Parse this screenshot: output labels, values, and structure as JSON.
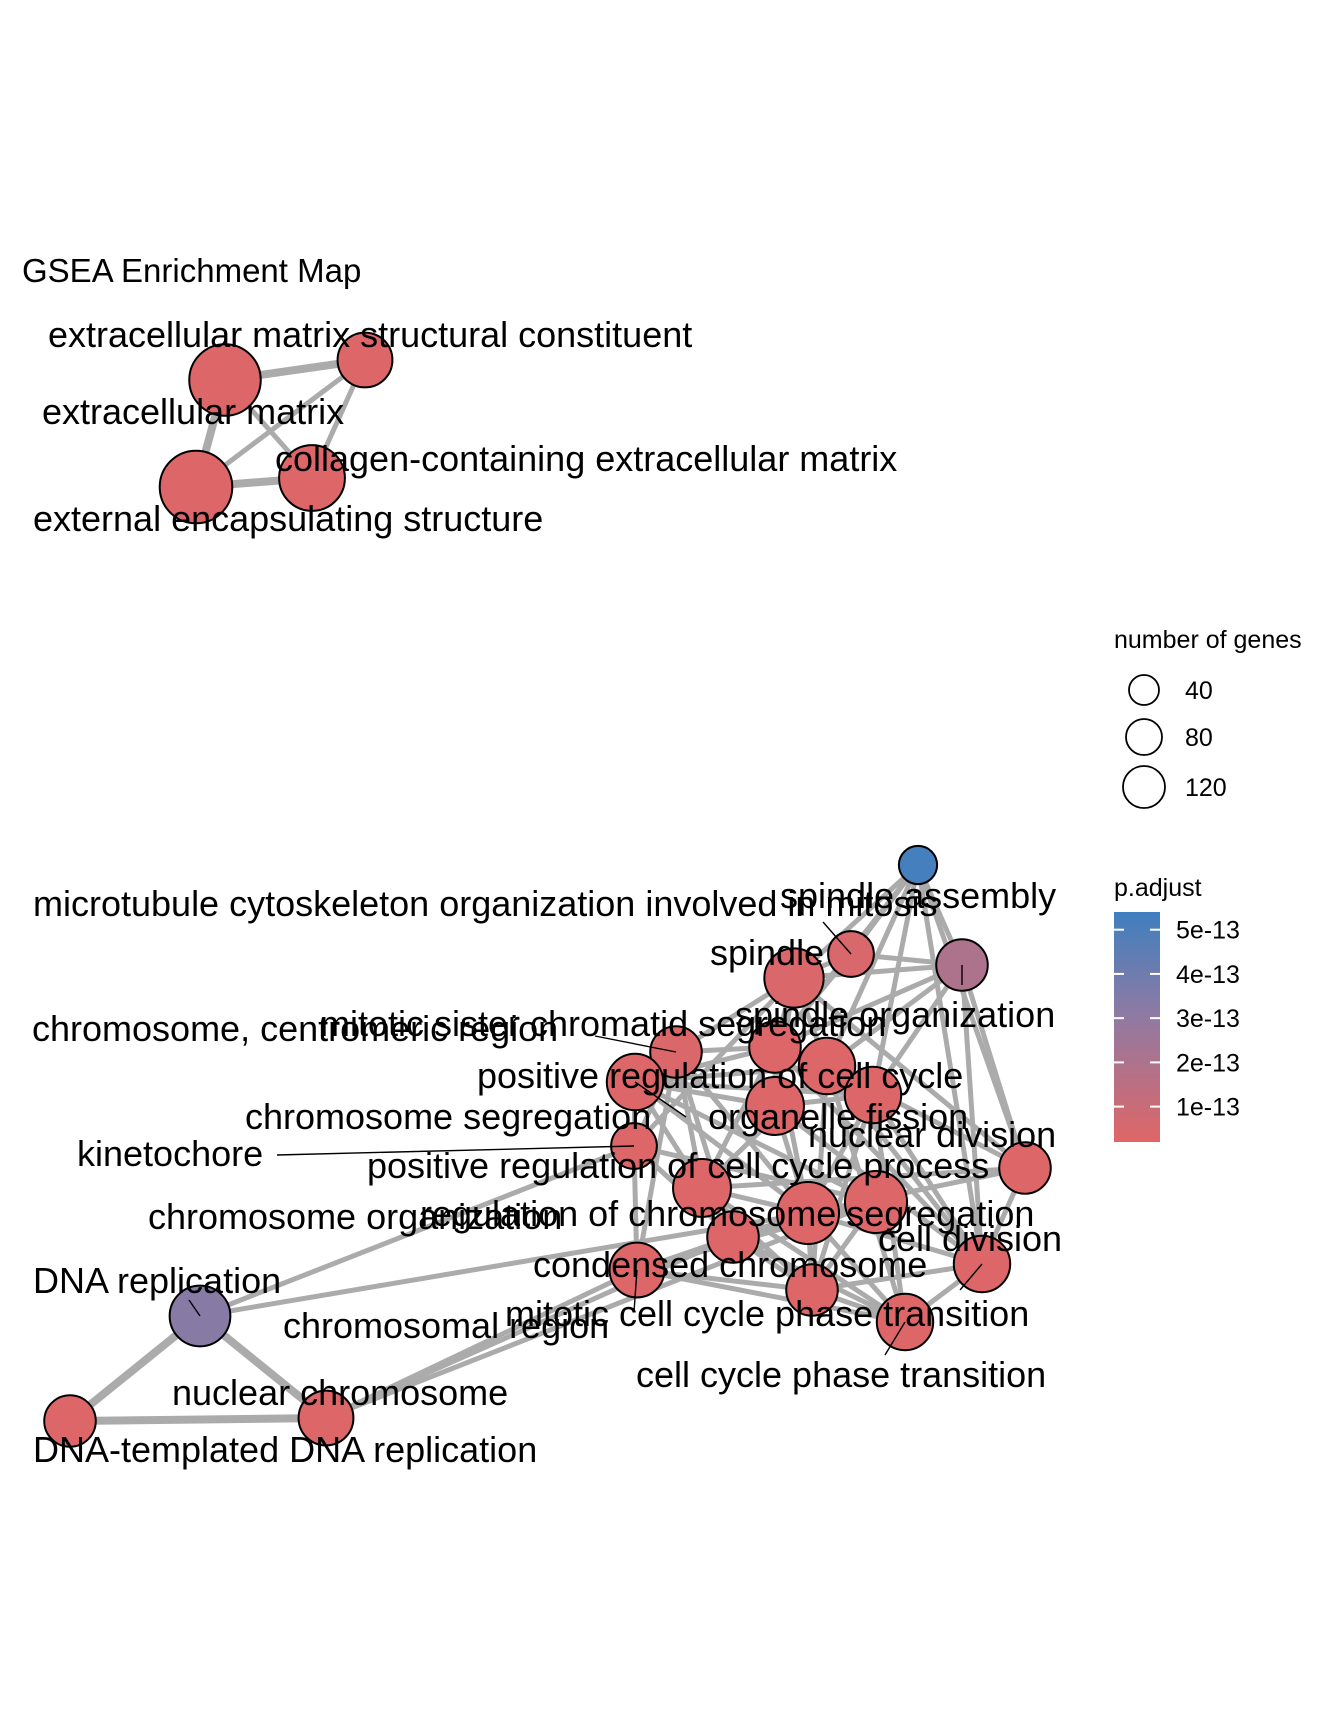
{
  "title": "GSEA Enrichment Map",
  "colors": {
    "low": "#e06666",
    "mid": "#8f7aa3",
    "high": "#3f7fbf",
    "edge": "#ababab"
  },
  "legend": {
    "size_title": "number of genes",
    "size_items": [
      {
        "label": "40",
        "genes": 40
      },
      {
        "label": "80",
        "genes": 80
      },
      {
        "label": "120",
        "genes": 120
      }
    ],
    "color_title": "p.adjust",
    "color_ticks": [
      {
        "label": "5e-13",
        "value": 5e-13
      },
      {
        "label": "4e-13",
        "value": 4e-13
      },
      {
        "label": "3e-13",
        "value": 3e-13
      },
      {
        "label": "2e-13",
        "value": 2e-13
      },
      {
        "label": "1e-13",
        "value": 1e-13
      }
    ],
    "color_range": [
      2e-14,
      5.4e-13
    ]
  },
  "nodes": [
    {
      "id": "ecm_struct",
      "label": "extracellular matrix structural constituent",
      "genes": 55,
      "padj": 3e-14
    },
    {
      "id": "ecm",
      "label": "extracellular matrix",
      "genes": 120,
      "padj": 3e-14
    },
    {
      "id": "collagen",
      "label": "collagen-containing extracellular matrix",
      "genes": 95,
      "padj": 3e-14
    },
    {
      "id": "external",
      "label": "external encapsulating structure",
      "genes": 125,
      "padj": 3e-14
    },
    {
      "id": "mt_org",
      "label": "microtubule cytoskeleton organization involved in mitosis",
      "genes": 15,
      "padj": 5.2e-13
    },
    {
      "id": "spindle_assembly",
      "label": "spindle assembly",
      "genes": 30,
      "padj": 5e-14
    },
    {
      "id": "spindle",
      "label": "spindle",
      "genes": 70,
      "padj": 4e-14
    },
    {
      "id": "spindle_org",
      "label": "spindle organization",
      "genes": 45,
      "padj": 2e-13
    },
    {
      "id": "centromeric",
      "label": "chromosome, centromeric region",
      "genes": 45,
      "padj": 4e-14
    },
    {
      "id": "sister",
      "label": "mitotic sister chromatid segregation",
      "genes": 45,
      "padj": 3e-14
    },
    {
      "id": "pos_reg_cc",
      "label": "positive regulation of cell cycle",
      "genes": 60,
      "padj": 3e-14
    },
    {
      "id": "chrom_seg",
      "label": "chromosome segregation",
      "genes": 60,
      "padj": 3e-14
    },
    {
      "id": "org_fission",
      "label": "organelle fission",
      "genes": 65,
      "padj": 3e-14
    },
    {
      "id": "nuc_div",
      "label": "nuclear division",
      "genes": 60,
      "padj": 3e-14
    },
    {
      "id": "kinetochore",
      "label": "kinetochore",
      "genes": 30,
      "padj": 3e-14
    },
    {
      "id": "pos_reg_ccp",
      "label": "positive regulation of cell cycle process",
      "genes": 65,
      "padj": 3e-14
    },
    {
      "id": "extra1",
      "label": "",
      "genes": 45,
      "padj": 3e-14
    },
    {
      "id": "chrom_org",
      "label": "chromosome organization",
      "genes": 80,
      "padj": 3e-14
    },
    {
      "id": "reg_chrom_seg",
      "label": "regulation of chromosome segregation",
      "genes": 80,
      "padj": 3e-14
    },
    {
      "id": "cell_div",
      "label": "cell division",
      "genes": 60,
      "padj": 3e-14
    },
    {
      "id": "condensed",
      "label": "condensed chromosome",
      "genes": 45,
      "padj": 3e-14
    },
    {
      "id": "mitotic_cc",
      "label": "mitotic cell cycle phase transition",
      "genes": 45,
      "padj": 3e-14
    },
    {
      "id": "chromosomal",
      "label": "chromosomal region",
      "genes": 55,
      "padj": 3e-14
    },
    {
      "id": "cc_phase",
      "label": "cell cycle phase transition",
      "genes": 60,
      "padj": 3e-14
    },
    {
      "id": "dna_rep",
      "label": "DNA replication",
      "genes": 75,
      "padj": 3.3e-13
    },
    {
      "id": "nuc_chrom",
      "label": "nuclear chromosome",
      "genes": 55,
      "padj": 3e-14
    },
    {
      "id": "dna_templ",
      "label": "DNA-templated DNA replication",
      "genes": 45,
      "padj": 3e-14
    }
  ],
  "edges": [
    [
      "ecm",
      "ecm_struct"
    ],
    [
      "ecm",
      "external"
    ],
    [
      "ecm",
      "collagen"
    ],
    [
      "ecm_struct",
      "collagen"
    ],
    [
      "ecm_struct",
      "external"
    ],
    [
      "external",
      "collagen"
    ],
    [
      "dna_rep",
      "dna_templ"
    ],
    [
      "dna_rep",
      "nuc_chrom"
    ],
    [
      "dna_templ",
      "nuc_chrom"
    ],
    [
      "dna_rep",
      "chrom_org"
    ],
    [
      "dna_rep",
      "kinetochore"
    ],
    [
      "nuc_chrom",
      "chromosomal"
    ],
    [
      "nuc_chrom",
      "condensed"
    ],
    [
      "nuc_chrom",
      "chrom_org"
    ],
    [
      "mt_org",
      "spindle"
    ],
    [
      "mt_org",
      "spindle_org"
    ],
    [
      "mt_org",
      "spindle_assembly"
    ],
    [
      "mt_org",
      "sister"
    ],
    [
      "mt_org",
      "nuc_div"
    ],
    [
      "mt_org",
      "extra1"
    ],
    [
      "mt_org",
      "pos_reg_cc"
    ],
    [
      "spindle_assembly",
      "spindle_org"
    ],
    [
      "spindle_assembly",
      "spindle"
    ],
    [
      "spindle_assembly",
      "sister"
    ],
    [
      "spindle",
      "spindle_org"
    ],
    [
      "spindle",
      "centromeric"
    ],
    [
      "spindle",
      "sister"
    ],
    [
      "spindle",
      "pos_reg_cc"
    ],
    [
      "spindle",
      "extra1"
    ],
    [
      "spindle",
      "kinetochore"
    ],
    [
      "spindle",
      "org_fission"
    ],
    [
      "spindle_org",
      "pos_reg_cc"
    ],
    [
      "spindle_org",
      "cell_div"
    ],
    [
      "spindle_org",
      "nuc_div"
    ],
    [
      "spindle_org",
      "sister"
    ],
    [
      "centromeric",
      "kinetochore"
    ],
    [
      "centromeric",
      "chrom_seg"
    ],
    [
      "centromeric",
      "sister"
    ],
    [
      "centromeric",
      "chromosomal"
    ],
    [
      "centromeric",
      "condensed"
    ],
    [
      "centromeric",
      "reg_chrom_seg"
    ],
    [
      "centromeric",
      "pos_reg_ccp"
    ],
    [
      "sister",
      "chrom_seg"
    ],
    [
      "sister",
      "org_fission"
    ],
    [
      "sister",
      "nuc_div"
    ],
    [
      "sister",
      "reg_chrom_seg"
    ],
    [
      "sister",
      "cell_div"
    ],
    [
      "pos_reg_cc",
      "pos_reg_ccp"
    ],
    [
      "pos_reg_cc",
      "mitotic_cc"
    ],
    [
      "pos_reg_cc",
      "cc_phase"
    ],
    [
      "pos_reg_cc",
      "chrom_seg"
    ],
    [
      "pos_reg_cc",
      "extra1"
    ],
    [
      "pos_reg_cc",
      "cell_div"
    ],
    [
      "chrom_seg",
      "org_fission"
    ],
    [
      "chrom_seg",
      "nuc_div"
    ],
    [
      "chrom_seg",
      "chrom_org"
    ],
    [
      "chrom_seg",
      "reg_chrom_seg"
    ],
    [
      "chrom_seg",
      "kinetochore"
    ],
    [
      "chrom_seg",
      "condensed"
    ],
    [
      "org_fission",
      "nuc_div"
    ],
    [
      "org_fission",
      "cell_div"
    ],
    [
      "org_fission",
      "reg_chrom_seg"
    ],
    [
      "nuc_div",
      "cell_div"
    ],
    [
      "nuc_div",
      "reg_chrom_seg"
    ],
    [
      "nuc_div",
      "cc_phase"
    ],
    [
      "nuc_div",
      "mitotic_cc"
    ],
    [
      "kinetochore",
      "chromosomal"
    ],
    [
      "kinetochore",
      "condensed"
    ],
    [
      "kinetochore",
      "chrom_org"
    ],
    [
      "pos_reg_ccp",
      "mitotic_cc"
    ],
    [
      "pos_reg_ccp",
      "cc_phase"
    ],
    [
      "pos_reg_ccp",
      "extra1"
    ],
    [
      "pos_reg_ccp",
      "reg_chrom_seg"
    ],
    [
      "extra1",
      "reg_chrom_seg"
    ],
    [
      "extra1",
      "cell_div"
    ],
    [
      "chrom_org",
      "chromosomal"
    ],
    [
      "chrom_org",
      "condensed"
    ],
    [
      "chrom_org",
      "reg_chrom_seg"
    ],
    [
      "chrom_org",
      "mitotic_cc"
    ],
    [
      "reg_chrom_seg",
      "cell_div"
    ],
    [
      "reg_chrom_seg",
      "mitotic_cc"
    ],
    [
      "reg_chrom_seg",
      "cc_phase"
    ],
    [
      "reg_chrom_seg",
      "condensed"
    ],
    [
      "cell_div",
      "cc_phase"
    ],
    [
      "cell_div",
      "mitotic_cc"
    ],
    [
      "condensed",
      "chromosomal"
    ],
    [
      "condensed",
      "mitotic_cc"
    ],
    [
      "condensed",
      "cc_phase"
    ],
    [
      "mitotic_cc",
      "cc_phase"
    ],
    [
      "chromosomal",
      "mitotic_cc"
    ],
    [
      "chromosomal",
      "cc_phase"
    ],
    [
      "spindle_org",
      "extra1"
    ],
    [
      "mt_org",
      "cell_div"
    ],
    [
      "sister",
      "pos_reg_ccp"
    ]
  ]
}
